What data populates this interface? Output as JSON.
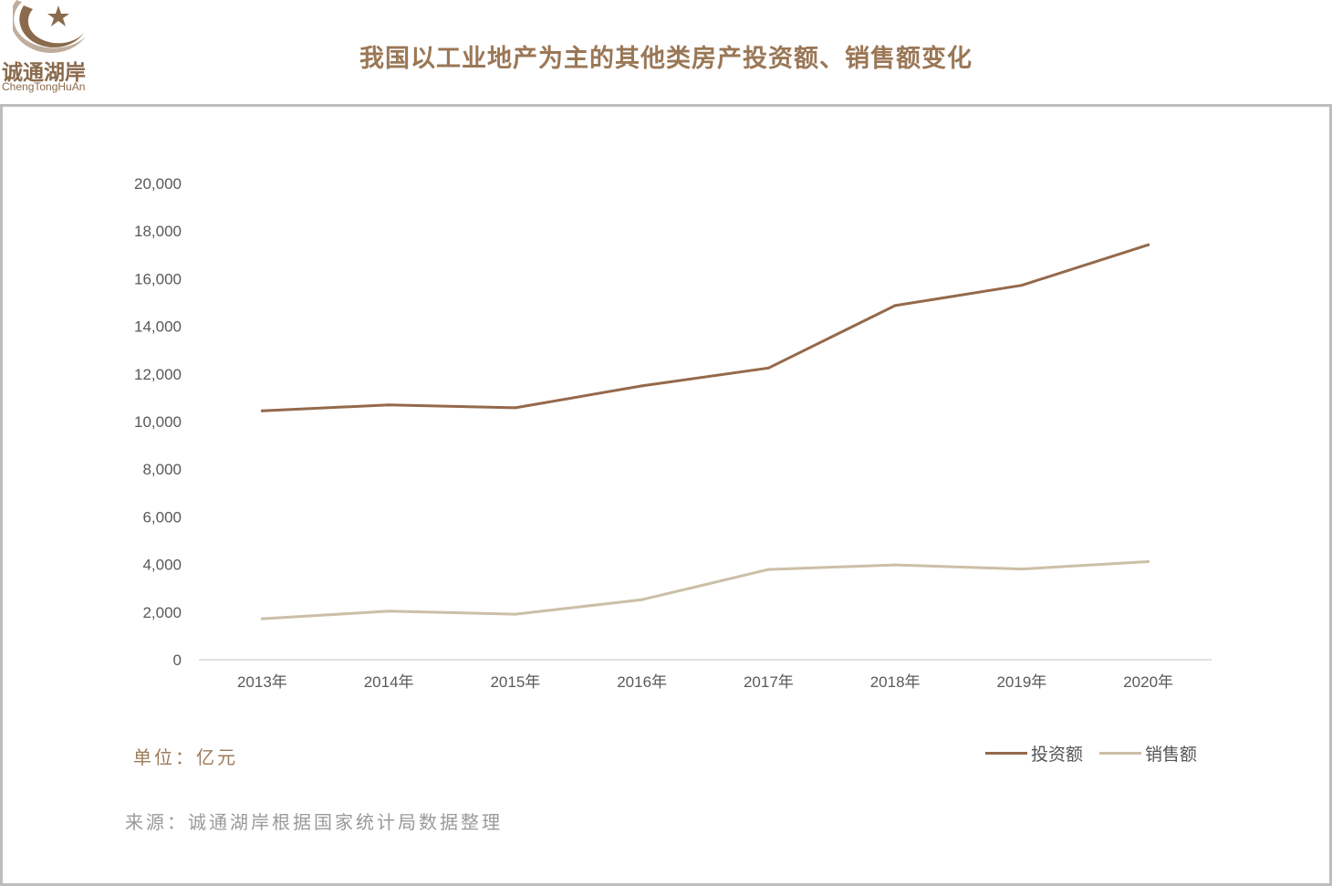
{
  "brand": {
    "name_cn": "诚通湖岸",
    "name_en": "ChengTongHuAn",
    "color": "#8a6a4c"
  },
  "header": {
    "title": "我国以工业地产为主的其他类房产投资额、销售额变化"
  },
  "notes": {
    "unit": "单位：亿元",
    "source": "来源：诚通湖岸根据国家统计局数据整理"
  },
  "chart_data": {
    "type": "line",
    "title": "我国以工业地产为主的其他类房产投资额、销售额变化",
    "xlabel": "",
    "ylabel": "",
    "categories": [
      "2013年",
      "2014年",
      "2015年",
      "2016年",
      "2017年",
      "2018年",
      "2019年",
      "2020年"
    ],
    "y_ticks": [
      "0",
      "2,000",
      "4,000",
      "6,000",
      "8,000",
      "10,000",
      "12,000",
      "14,000",
      "16,000",
      "18,000",
      "20,000"
    ],
    "ylim": [
      0,
      20000
    ],
    "grid": false,
    "legend_position": "bottom-right",
    "series": [
      {
        "name": "投资额",
        "color": "#94694a",
        "values": [
          10450,
          10700,
          10580,
          11500,
          12250,
          14870,
          15720,
          17420
        ]
      },
      {
        "name": "销售额",
        "color": "#cbbfa6",
        "values": [
          1720,
          2040,
          1910,
          2520,
          3790,
          3980,
          3810,
          4120
        ]
      }
    ]
  }
}
